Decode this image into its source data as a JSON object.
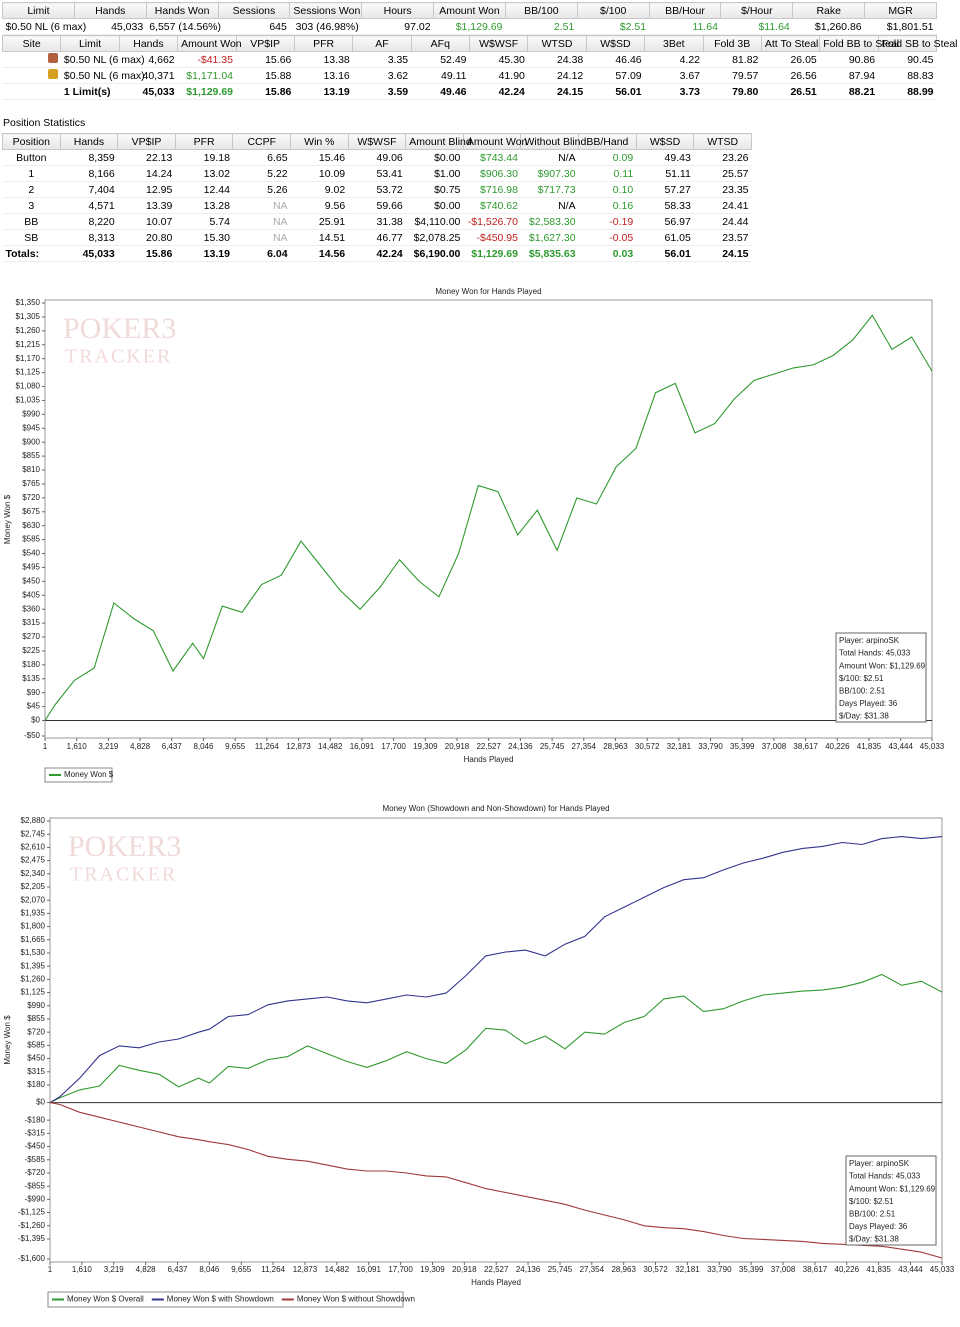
{
  "summary_table": {
    "header": [
      "Limit",
      "Hands",
      "Hands Won",
      "Sessions",
      "Sessions Won",
      "Hours",
      "Amount Won",
      "BB/100",
      "$/100",
      "BB/Hour",
      "$/Hour",
      "Rake",
      "MGR"
    ],
    "rows": [
      [
        "$0.50 NL (6 max)",
        "45,033",
        "6,557 (14.56%)",
        "645",
        "303 (46.98%)",
        "97.02",
        "$1,129.69",
        "2.51",
        "$2.51",
        "11.64",
        "$11.64",
        "$1,260.86",
        "$1,801.51"
      ]
    ]
  },
  "limit_table": {
    "header": [
      "Site",
      "Limit",
      "Hands",
      "Amount Won",
      "VP$IP",
      "PFR",
      "AF",
      "AFq",
      "W$WSF",
      "WTSD",
      "W$SD",
      "3Bet",
      "Fold 3B",
      "Att To Steal",
      "Fold BB to Steal",
      "Fold SB to Steal"
    ],
    "rows": [
      [
        "$0.50 NL (6 max)",
        "4,662",
        "-$41.35",
        "15.66",
        "13.38",
        "3.35",
        "52.49",
        "45.30",
        "24.38",
        "46.46",
        "4.22",
        "81.82",
        "26.05",
        "90.86",
        "90.45"
      ],
      [
        "$0.50 NL (6 max)",
        "40,371",
        "$1,171.04",
        "15.88",
        "13.16",
        "3.62",
        "49.11",
        "41.90",
        "24.12",
        "57.09",
        "3.67",
        "79.57",
        "26.56",
        "87.94",
        "88.83"
      ],
      [
        "1 Limit(s)",
        "45,033",
        "$1,129.69",
        "15.86",
        "13.19",
        "3.59",
        "49.46",
        "42.24",
        "24.15",
        "56.01",
        "3.73",
        "79.80",
        "26.51",
        "88.21",
        "88.99"
      ]
    ]
  },
  "position_table": {
    "title": "Position Statistics",
    "header": [
      "Position",
      "Hands",
      "VP$IP",
      "PFR",
      "CCPF",
      "Win %",
      "W$WSF",
      "Amount Blind",
      "Amount Won",
      "Without Blind",
      "BB/Hand",
      "W$SD",
      "WTSD"
    ],
    "rows": [
      [
        "Button",
        "8,359",
        "22.13",
        "19.18",
        "6.65",
        "15.46",
        "49.06",
        "$0.00",
        "$743.44",
        "N/A",
        "0.09",
        "49.43",
        "23.26"
      ],
      [
        "1",
        "8,166",
        "14.24",
        "13.02",
        "5.22",
        "10.09",
        "53.41",
        "$1.00",
        "$906.30",
        "$907.30",
        "0.11",
        "51.11",
        "25.57"
      ],
      [
        "2",
        "7,404",
        "12.95",
        "12.44",
        "5.26",
        "9.02",
        "53.72",
        "$0.75",
        "$716.98",
        "$717.73",
        "0.10",
        "57.27",
        "23.35"
      ],
      [
        "3",
        "4,571",
        "13.39",
        "13.28",
        "NA",
        "9.56",
        "59.66",
        "$0.00",
        "$740.62",
        "N/A",
        "0.16",
        "58.33",
        "24.41"
      ],
      [
        "BB",
        "8,220",
        "10.07",
        "5.74",
        "NA",
        "25.91",
        "31.38",
        "$4,110.00",
        "-$1,526.70",
        "$2,583.30",
        "-0.19",
        "56.97",
        "24.44"
      ],
      [
        "SB",
        "8,313",
        "20.80",
        "15.30",
        "NA",
        "14.51",
        "46.77",
        "$2,078.25",
        "-$450.95",
        "$1,627.30",
        "-0.05",
        "61.05",
        "23.57"
      ],
      [
        "Totals:",
        "45,033",
        "15.86",
        "13.19",
        "6.04",
        "14.56",
        "42.24",
        "$6,190.00",
        "$1,129.69",
        "$5,835.63",
        "0.03",
        "56.01",
        "24.15"
      ]
    ]
  },
  "chart_data": [
    {
      "type": "line",
      "title": "Money Won for Hands Played",
      "x_label": "Hands Played",
      "y_label": "Money Won $",
      "watermark": [
        "POKER3",
        "TRACKER"
      ],
      "annotations": [
        "Player: arpinoSK",
        "Total Hands: 45,033",
        "Amount Won: $1,129.69",
        "$/100: $2.51",
        "BB/100: 2.51",
        "Days Played: 36",
        "$/Day: $31.38"
      ],
      "x": [
        1,
        500,
        1500,
        2500,
        3500,
        4500,
        5500,
        6500,
        7500,
        8046,
        9000,
        10000,
        11000,
        12000,
        13000,
        14000,
        15000,
        16000,
        17000,
        18000,
        19000,
        20000,
        21000,
        22000,
        23000,
        24000,
        25000,
        26000,
        27000,
        28000,
        29000,
        30000,
        31000,
        32000,
        33000,
        34000,
        35000,
        36000,
        37000,
        38000,
        39000,
        40000,
        41000,
        42000,
        43000,
        44000,
        45033
      ],
      "series": [
        {
          "name": "Money Won $",
          "color": "#2f9a2f",
          "values": [
            0,
            50,
            130,
            170,
            380,
            330,
            290,
            160,
            250,
            200,
            370,
            350,
            440,
            470,
            580,
            500,
            420,
            360,
            430,
            520,
            450,
            400,
            540,
            760,
            740,
            600,
            680,
            550,
            720,
            700,
            820,
            880,
            1060,
            1090,
            930,
            960,
            1040,
            1100,
            1120,
            1140,
            1150,
            1180,
            1230,
            1310,
            1200,
            1240,
            1129.69
          ]
        }
      ],
      "xlim": [
        1,
        45033
      ],
      "xticks": [
        1,
        {
          "value": 1610,
          "label": "1,610"
        },
        {
          "value": 3219,
          "label": "3,219"
        },
        {
          "value": 4828,
          "label": "4,828"
        },
        {
          "value": 6437,
          "label": "6,437"
        },
        {
          "value": 8046,
          "label": "8,046"
        },
        {
          "value": 9655,
          "label": "9,655"
        },
        {
          "value": 11264,
          "label": "11,264"
        },
        {
          "value": 12873,
          "label": "12,873"
        },
        {
          "value": 14482,
          "label": "14,482"
        },
        {
          "value": 16091,
          "label": "16,091"
        },
        {
          "value": 17700,
          "label": "17,700"
        },
        {
          "value": 19309,
          "label": "19,309"
        },
        {
          "value": 20918,
          "label": "20,918"
        },
        {
          "value": 22527,
          "label": "22,527"
        },
        {
          "value": 24136,
          "label": "24,136"
        },
        {
          "value": 25745,
          "label": "25,745"
        },
        {
          "value": 27354,
          "label": "27,354"
        },
        {
          "value": 28963,
          "label": "28,963"
        },
        {
          "value": 30572,
          "label": "30,572"
        },
        {
          "value": 32181,
          "label": "32,181"
        },
        {
          "value": 33790,
          "label": "33,790"
        },
        {
          "value": 35399,
          "label": "35,399"
        },
        {
          "value": 37008,
          "label": "37,008"
        },
        {
          "value": 38617,
          "label": "38,617"
        },
        {
          "value": 40226,
          "label": "40,226"
        },
        {
          "value": 41835,
          "label": "41,835"
        },
        {
          "value": 43444,
          "label": "43,444"
        },
        {
          "value": 45033,
          "label": "45,033"
        }
      ],
      "ylim": [
        -50,
        1350
      ],
      "yticks": [
        {
          "value": -50,
          "label": "-$50"
        },
        {
          "value": 0,
          "label": "$0"
        },
        {
          "value": 45,
          "label": "$45"
        },
        {
          "value": 90,
          "label": "$90"
        },
        {
          "value": 135,
          "label": "$135"
        },
        {
          "value": 180,
          "label": "$180"
        },
        {
          "value": 225,
          "label": "$225"
        },
        {
          "value": 270,
          "label": "$270"
        },
        {
          "value": 315,
          "label": "$315"
        },
        {
          "value": 360,
          "label": "$360"
        },
        {
          "value": 405,
          "label": "$405"
        },
        {
          "value": 450,
          "label": "$450"
        },
        {
          "value": 495,
          "label": "$495"
        },
        {
          "value": 540,
          "label": "$540"
        },
        {
          "value": 585,
          "label": "$585"
        },
        {
          "value": 630,
          "label": "$630"
        },
        {
          "value": 675,
          "label": "$675"
        },
        {
          "value": 720,
          "label": "$720"
        },
        {
          "value": 765,
          "label": "$765"
        },
        {
          "value": 810,
          "label": "$810"
        },
        {
          "value": 855,
          "label": "$855"
        },
        {
          "value": 900,
          "label": "$900"
        },
        {
          "value": 945,
          "label": "$945"
        },
        {
          "value": 990,
          "label": "$990"
        },
        {
          "value": 1035,
          "label": "$1,035"
        },
        {
          "value": 1080,
          "label": "$1,080"
        },
        {
          "value": 1125,
          "label": "$1,125"
        },
        {
          "value": 1170,
          "label": "$1,170"
        },
        {
          "value": 1215,
          "label": "$1,215"
        },
        {
          "value": 1260,
          "label": "$1,260"
        },
        {
          "value": 1305,
          "label": "$1,305"
        },
        {
          "value": 1350,
          "label": "$1,350"
        }
      ],
      "grid": false
    },
    {
      "type": "line",
      "title": "Money Won (Showdown and Non-Showdown) for Hands Played",
      "x_label": "Hands Played",
      "y_label": "Money Won $",
      "watermark": [
        "POKER3",
        "TRACKER"
      ],
      "annotations": [
        "Player: arpinoSK",
        "Total Hands: 45,033",
        "Amount Won: $1,129.69",
        "$/100: $2.51",
        "BB/100: 2.51",
        "Days Played: 36",
        "$/Day: $31.38"
      ],
      "x": [
        1,
        500,
        1500,
        2500,
        3500,
        4500,
        5500,
        6500,
        7500,
        8046,
        9000,
        10000,
        11000,
        12000,
        13000,
        14000,
        15000,
        16000,
        17000,
        18000,
        19000,
        20000,
        21000,
        22000,
        23000,
        24000,
        25000,
        26000,
        27000,
        28000,
        29000,
        30000,
        31000,
        32000,
        33000,
        34000,
        35000,
        36000,
        37000,
        38000,
        39000,
        40000,
        41000,
        42000,
        43000,
        44000,
        45033
      ],
      "series": [
        {
          "name": "Money Won $ Overall",
          "color": "#2f9a2f",
          "values": [
            0,
            50,
            130,
            170,
            380,
            330,
            290,
            160,
            250,
            200,
            370,
            350,
            440,
            470,
            580,
            500,
            420,
            360,
            430,
            520,
            450,
            400,
            540,
            760,
            740,
            600,
            680,
            550,
            720,
            700,
            820,
            880,
            1060,
            1090,
            930,
            960,
            1040,
            1100,
            1120,
            1140,
            1150,
            1180,
            1230,
            1310,
            1200,
            1240,
            1129.69
          ]
        },
        {
          "name": "Money Won $ with Showdown",
          "color": "#33338f",
          "values": [
            0,
            60,
            250,
            480,
            580,
            560,
            620,
            650,
            720,
            750,
            880,
            900,
            1000,
            1040,
            1060,
            1080,
            1040,
            1020,
            1060,
            1100,
            1080,
            1120,
            1300,
            1500,
            1540,
            1560,
            1500,
            1620,
            1700,
            1900,
            2000,
            2100,
            2200,
            2280,
            2300,
            2380,
            2450,
            2500,
            2560,
            2600,
            2620,
            2660,
            2640,
            2700,
            2720,
            2700,
            2720
          ]
        },
        {
          "name": "Money Won $ without Showdown",
          "color": "#a03838",
          "values": [
            0,
            -20,
            -100,
            -150,
            -200,
            -250,
            -300,
            -350,
            -380,
            -400,
            -430,
            -480,
            -550,
            -580,
            -600,
            -640,
            -680,
            -700,
            -700,
            -720,
            -750,
            -760,
            -820,
            -880,
            -920,
            -960,
            -1000,
            -1040,
            -1100,
            -1150,
            -1200,
            -1260,
            -1280,
            -1290,
            -1320,
            -1360,
            -1390,
            -1400,
            -1410,
            -1420,
            -1440,
            -1450,
            -1460,
            -1470,
            -1500,
            -1530,
            -1590
          ]
        }
      ],
      "xlim": [
        1,
        45033
      ],
      "xticks": [
        1,
        {
          "value": 1610,
          "label": "1,610"
        },
        {
          "value": 3219,
          "label": "3,219"
        },
        {
          "value": 4828,
          "label": "4,828"
        },
        {
          "value": 6437,
          "label": "6,437"
        },
        {
          "value": 8046,
          "label": "8,046"
        },
        {
          "value": 9655,
          "label": "9,655"
        },
        {
          "value": 11264,
          "label": "11,264"
        },
        {
          "value": 12873,
          "label": "12,873"
        },
        {
          "value": 14482,
          "label": "14,482"
        },
        {
          "value": 16091,
          "label": "16,091"
        },
        {
          "value": 17700,
          "label": "17,700"
        },
        {
          "value": 19309,
          "label": "19,309"
        },
        {
          "value": 20918,
          "label": "20,918"
        },
        {
          "value": 22527,
          "label": "22,527"
        },
        {
          "value": 24136,
          "label": "24,136"
        },
        {
          "value": 25745,
          "label": "25,745"
        },
        {
          "value": 27354,
          "label": "27,354"
        },
        {
          "value": 28963,
          "label": "28,963"
        },
        {
          "value": 30572,
          "label": "30,572"
        },
        {
          "value": 32181,
          "label": "32,181"
        },
        {
          "value": 33790,
          "label": "33,790"
        },
        {
          "value": 35399,
          "label": "35,399"
        },
        {
          "value": 37008,
          "label": "37,008"
        },
        {
          "value": 38617,
          "label": "38,617"
        },
        {
          "value": 40226,
          "label": "40,226"
        },
        {
          "value": 41835,
          "label": "41,835"
        },
        {
          "value": 43444,
          "label": "43,444"
        },
        {
          "value": 45033,
          "label": "45,033"
        }
      ],
      "ylim": [
        -1600,
        2880
      ],
      "yticks": [
        {
          "value": -1600,
          "label": "-$1,600"
        },
        {
          "value": -1395,
          "label": "-$1,395"
        },
        {
          "value": -1260,
          "label": "-$1,260"
        },
        {
          "value": -1125,
          "label": "-$1,125"
        },
        {
          "value": -990,
          "label": "-$990"
        },
        {
          "value": -855,
          "label": "-$855"
        },
        {
          "value": -720,
          "label": "-$720"
        },
        {
          "value": -585,
          "label": "-$585"
        },
        {
          "value": -450,
          "label": "-$450"
        },
        {
          "value": -315,
          "label": "-$315"
        },
        {
          "value": -180,
          "label": "-$180"
        },
        {
          "value": 0,
          "label": "$0"
        },
        {
          "value": 180,
          "label": "$180"
        },
        {
          "value": 315,
          "label": "$315"
        },
        {
          "value": 450,
          "label": "$450"
        },
        {
          "value": 585,
          "label": "$585"
        },
        {
          "value": 720,
          "label": "$720"
        },
        {
          "value": 855,
          "label": "$855"
        },
        {
          "value": 990,
          "label": "$990"
        },
        {
          "value": 1125,
          "label": "$1,125"
        },
        {
          "value": 1260,
          "label": "$1,260"
        },
        {
          "value": 1395,
          "label": "$1,395"
        },
        {
          "value": 1530,
          "label": "$1,530"
        },
        {
          "value": 1665,
          "label": "$1,665"
        },
        {
          "value": 1800,
          "label": "$1,800"
        },
        {
          "value": 1935,
          "label": "$1,935"
        },
        {
          "value": 2070,
          "label": "$2,070"
        },
        {
          "value": 2205,
          "label": "$2,205"
        },
        {
          "value": 2340,
          "label": "$2,340"
        },
        {
          "value": 2475,
          "label": "$2,475"
        },
        {
          "value": 2610,
          "label": "$2,610"
        },
        {
          "value": 2745,
          "label": "$2,745"
        },
        {
          "value": 2880,
          "label": "$2,880"
        }
      ],
      "grid": false
    }
  ]
}
